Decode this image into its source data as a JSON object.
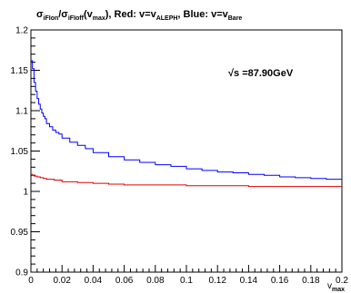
{
  "chart_data": {
    "type": "line",
    "title": {
      "segments": [
        {
          "t": "σ",
          "style": "normal"
        },
        {
          "t": "iFIon",
          "style": "sub"
        },
        {
          "t": "/σ",
          "style": "normal"
        },
        {
          "t": "iFIoff",
          "style": "sub"
        },
        {
          "t": "(v",
          "style": "normal"
        },
        {
          "t": "max",
          "style": "sub"
        },
        {
          "t": "),  Red: v=v",
          "style": "normal"
        },
        {
          "t": "ALEPH",
          "style": "sub"
        },
        {
          "t": ",  Blue: v=v",
          "style": "normal"
        },
        {
          "t": "Bare",
          "style": "sub"
        }
      ]
    },
    "annotation": "√s =87.90GeV",
    "xlabel": "v",
    "xlabel_sub": "max",
    "ylabel": "",
    "xlim": [
      0,
      0.2
    ],
    "ylim": [
      0.9,
      1.2
    ],
    "x_ticks": [
      "0",
      "0.02",
      "0.04",
      "0.06",
      "0.08",
      "0.1",
      "0.12",
      "0.14",
      "0.16",
      "0.18",
      "0.2"
    ],
    "y_ticks": [
      "0.9",
      "0.95",
      "1",
      "1.05",
      "1.1",
      "1.15",
      "1.2"
    ],
    "grid": false,
    "series": [
      {
        "color": "#0000ff",
        "x": [
          0.001,
          0.002,
          0.003,
          0.004,
          0.005,
          0.006,
          0.007,
          0.008,
          0.009,
          0.01,
          0.012,
          0.014,
          0.016,
          0.018,
          0.02,
          0.025,
          0.03,
          0.035,
          0.04,
          0.05,
          0.06,
          0.07,
          0.08,
          0.09,
          0.1,
          0.11,
          0.12,
          0.13,
          0.14,
          0.15,
          0.16,
          0.17,
          0.18,
          0.19,
          0.2
        ],
        "y": [
          1.162,
          1.152,
          1.135,
          1.124,
          1.115,
          1.108,
          1.102,
          1.097,
          1.093,
          1.09,
          1.084,
          1.08,
          1.076,
          1.073,
          1.071,
          1.066,
          1.061,
          1.057,
          1.053,
          1.048,
          1.043,
          1.039,
          1.036,
          1.033,
          1.031,
          1.028,
          1.026,
          1.024,
          1.023,
          1.021,
          1.02,
          1.018,
          1.017,
          1.016,
          1.015
        ]
      },
      {
        "color": "#e00000",
        "x": [
          0.001,
          0.002,
          0.004,
          0.006,
          0.008,
          0.01,
          0.015,
          0.02,
          0.03,
          0.04,
          0.05,
          0.06,
          0.08,
          0.1,
          0.12,
          0.14,
          0.16,
          0.18,
          0.2
        ],
        "y": [
          1.021,
          1.02,
          1.019,
          1.018,
          1.017,
          1.016,
          1.015,
          1.014,
          1.012,
          1.011,
          1.01,
          1.009,
          1.008,
          1.008,
          1.007,
          1.007,
          1.006,
          1.006,
          1.006
        ]
      }
    ]
  }
}
